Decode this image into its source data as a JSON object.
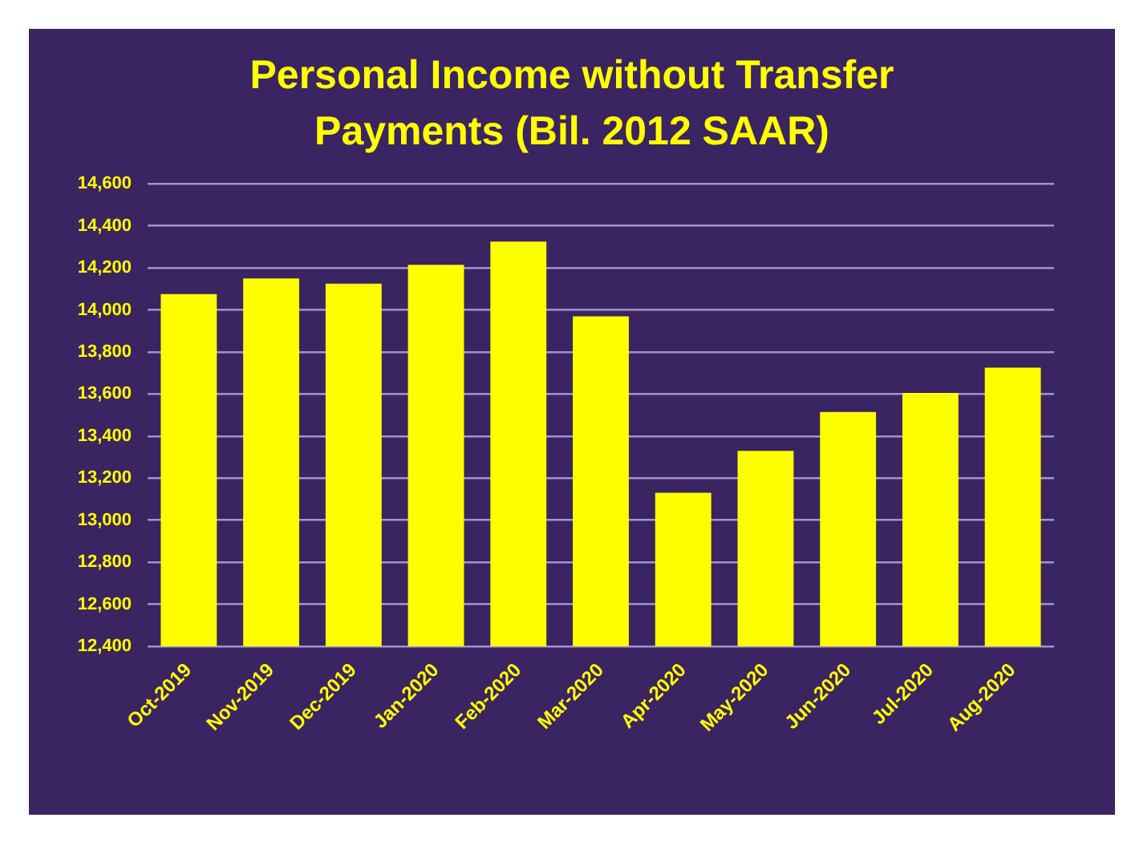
{
  "chart_data": {
    "type": "bar",
    "title": "Personal Income without Transfer Payments (Bil. 2012 SAAR)",
    "categories": [
      "Oct-2019",
      "Nov-2019",
      "Dec-2019",
      "Jan-2020",
      "Feb-2020",
      "Mar-2020",
      "Apr-2020",
      "May-2020",
      "Jun-2020",
      "Jul-2020",
      "Aug-2020"
    ],
    "values": [
      14075,
      14150,
      14125,
      14215,
      14325,
      13970,
      13130,
      13330,
      13515,
      13605,
      13725
    ],
    "color": "#ffff00",
    "ylim": [
      12400,
      14600
    ],
    "yticks": [
      {
        "value": 12400,
        "label": "12,400"
      },
      {
        "value": 12600,
        "label": "12,600"
      },
      {
        "value": 12800,
        "label": "12,800"
      },
      {
        "value": 13000,
        "label": "13,000"
      },
      {
        "value": 13200,
        "label": "13,200"
      },
      {
        "value": 13400,
        "label": "13,400"
      },
      {
        "value": 13600,
        "label": "13,600"
      },
      {
        "value": 13800,
        "label": "13,800"
      },
      {
        "value": 14000,
        "label": "14,000"
      },
      {
        "value": 14200,
        "label": "14,200"
      },
      {
        "value": 14400,
        "label": "14,400"
      },
      {
        "value": 14600,
        "label": "14,600"
      }
    ],
    "grid": "y",
    "legend": false
  }
}
